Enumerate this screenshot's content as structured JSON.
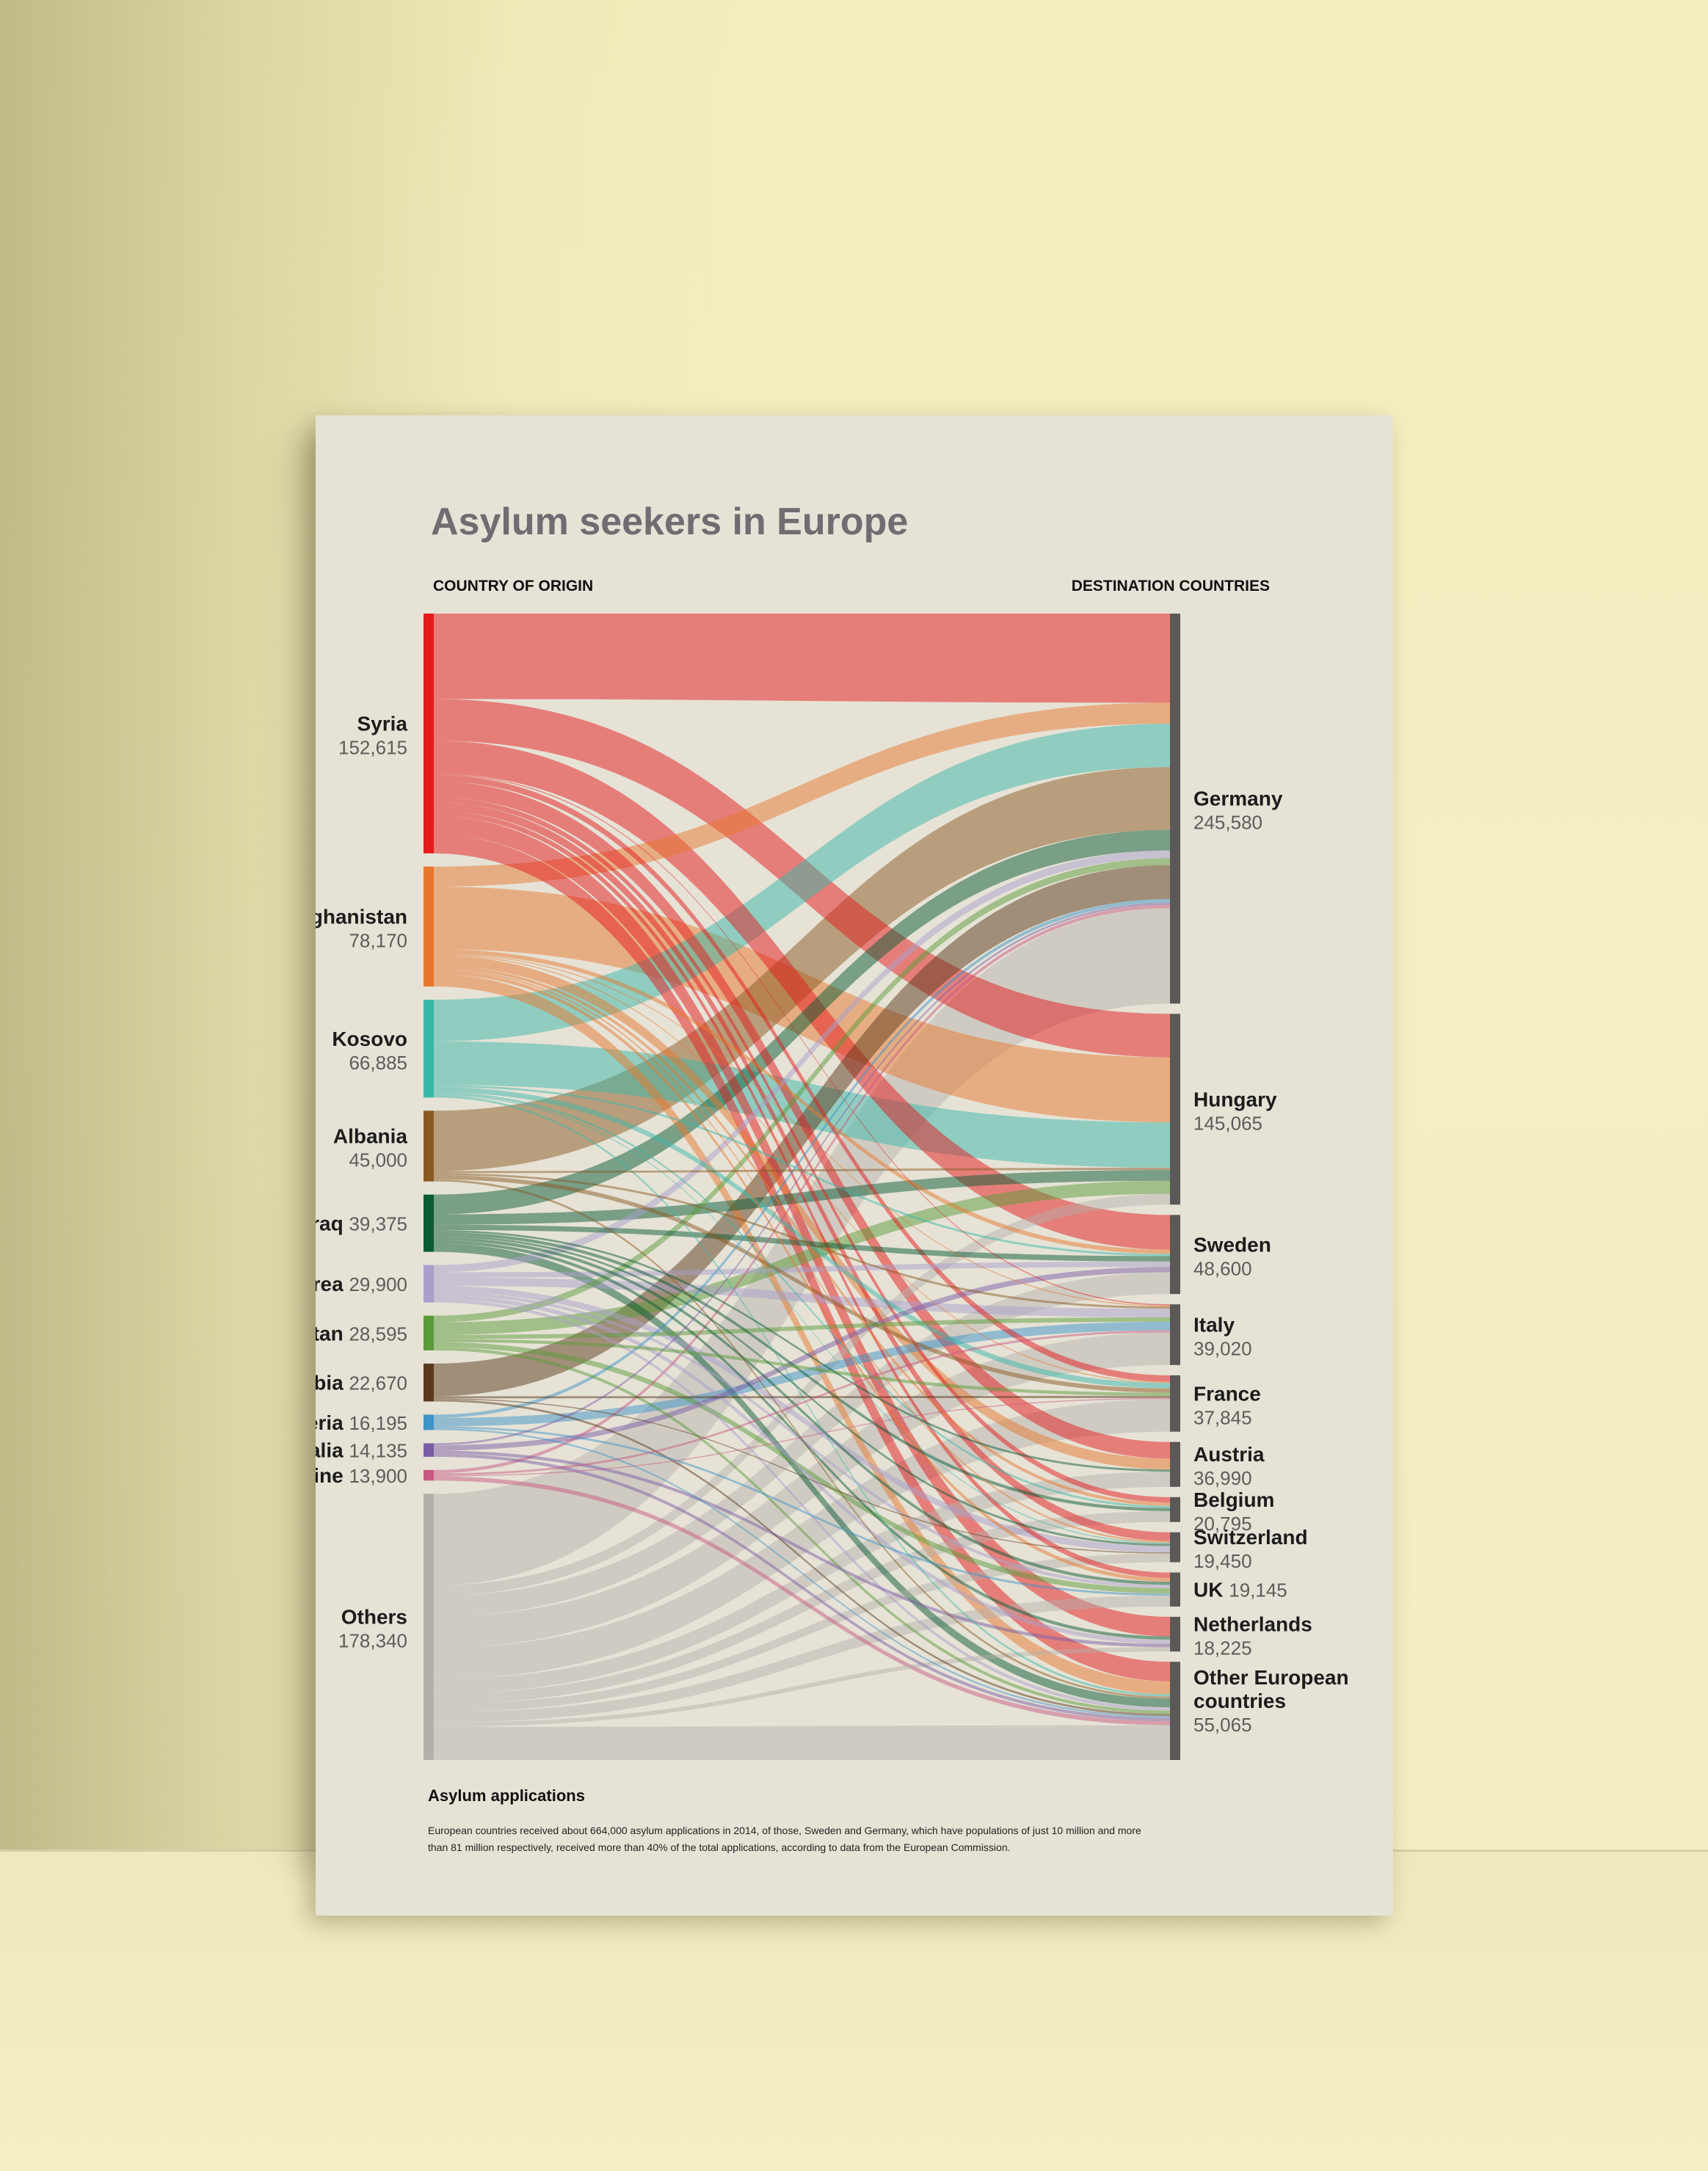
{
  "poster": {
    "title": "Asylum seekers in Europe",
    "origin_header": "COUNTRY OF ORIGIN",
    "destination_header": "DESTINATION COUNTRIES",
    "footer_title": "Asylum applications",
    "footer_text_line1": "European countries received about 664,000 asylum applications in 2014, of those, Sweden and Germany, which have populations of just 10 million and more",
    "footer_text_line2": "than 81 million respectively, received more than 40% of the total applications, according to data from the European Commission."
  },
  "chart_data": {
    "type": "sankey",
    "sources": [
      {
        "name": "Syria",
        "value": "152,615",
        "color": "#e41a1c",
        "label_layout": "stacked"
      },
      {
        "name": "Afghanistan",
        "value": "78,170",
        "color": "#e8772e",
        "label_layout": "stacked"
      },
      {
        "name": "Kosovo",
        "value": "66,885",
        "color": "#39b7a9",
        "label_layout": "stacked"
      },
      {
        "name": "Albania",
        "value": "45,000",
        "color": "#8a5a22",
        "label_layout": "stacked"
      },
      {
        "name": "Iraq",
        "value": "39,375",
        "color": "#0b5b35",
        "label_layout": "inline"
      },
      {
        "name": "Eritrea",
        "value": "29,900",
        "color": "#a99fcb",
        "label_layout": "inline"
      },
      {
        "name": "Pakistan",
        "value": "28,595",
        "color": "#5b9b3a",
        "label_layout": "inline"
      },
      {
        "name": "Serbia",
        "value": "22,670",
        "color": "#5b3a1c",
        "label_layout": "inline"
      },
      {
        "name": "Nigeria",
        "value": "16,195",
        "color": "#3e93c8",
        "label_layout": "inline"
      },
      {
        "name": "Somalia",
        "value": "14,135",
        "color": "#7b5da6",
        "label_layout": "inline"
      },
      {
        "name": "Ukraine",
        "value": "13,900",
        "color": "#c85a82",
        "label_layout": "inline"
      },
      {
        "name": "Others",
        "value": "178,340",
        "color": "#b3b0aa",
        "label_layout": "stacked"
      }
    ],
    "destinations": [
      {
        "name": "Germany",
        "value": "245,580",
        "label_layout": "stacked"
      },
      {
        "name": "Hungary",
        "value": "145,065",
        "label_layout": "stacked"
      },
      {
        "name": "Sweden",
        "value": "48,600",
        "label_layout": "stacked"
      },
      {
        "name": "Italy",
        "value": "39,020",
        "label_layout": "stacked"
      },
      {
        "name": "France",
        "value": "37,845",
        "label_layout": "stacked"
      },
      {
        "name": "Austria",
        "value": "36,990",
        "label_layout": "stacked"
      },
      {
        "name": "Belgium",
        "value": "20,795",
        "label_layout": "stacked"
      },
      {
        "name": "Switzerland",
        "value": "19,450",
        "label_layout": "stacked"
      },
      {
        "name": "UK",
        "value": "19,145",
        "label_layout": "inline"
      },
      {
        "name": "Netherlands",
        "value": "18,225",
        "label_layout": "stacked"
      },
      {
        "name": "Other European countries",
        "name_lines": [
          "Other European",
          "countries"
        ],
        "value": "55,065",
        "label_layout": "stacked"
      }
    ],
    "flows": [
      {
        "from": "Syria",
        "to": "Germany",
        "value": 41100
      },
      {
        "from": "Syria",
        "to": "Hungary",
        "value": 20000
      },
      {
        "from": "Syria",
        "to": "Sweden",
        "value": 16000
      },
      {
        "from": "Syria",
        "to": "Austria",
        "value": 7700
      },
      {
        "from": "Syria",
        "to": "Netherlands",
        "value": 9000
      },
      {
        "from": "Syria",
        "to": "Other European countries",
        "value": 9000
      },
      {
        "from": "Syria",
        "to": "France",
        "value": 3000
      },
      {
        "from": "Syria",
        "to": "Belgium",
        "value": 2500
      },
      {
        "from": "Syria",
        "to": "Switzerland",
        "value": 4000
      },
      {
        "from": "Syria",
        "to": "UK",
        "value": 2500
      },
      {
        "from": "Syria",
        "to": "Italy",
        "value": 500
      },
      {
        "from": "Afghanistan",
        "to": "Germany",
        "value": 9700
      },
      {
        "from": "Afghanistan",
        "to": "Hungary",
        "value": 30000
      },
      {
        "from": "Afghanistan",
        "to": "Sweden",
        "value": 2000
      },
      {
        "from": "Afghanistan",
        "to": "Austria",
        "value": 5000
      },
      {
        "from": "Afghanistan",
        "to": "Other European countries",
        "value": 6000
      },
      {
        "from": "Afghanistan",
        "to": "UK",
        "value": 1700
      },
      {
        "from": "Afghanistan",
        "to": "Italy",
        "value": 500
      },
      {
        "from": "Afghanistan",
        "to": "Belgium",
        "value": 1500
      },
      {
        "from": "Afghanistan",
        "to": "Switzerland",
        "value": 800
      },
      {
        "from": "Afghanistan",
        "to": "France",
        "value": 500
      },
      {
        "from": "Kosovo",
        "to": "Germany",
        "value": 20000
      },
      {
        "from": "Kosovo",
        "to": "Hungary",
        "value": 21000
      },
      {
        "from": "Kosovo",
        "to": "France",
        "value": 2500
      },
      {
        "from": "Kosovo",
        "to": "Sweden",
        "value": 1000
      },
      {
        "from": "Kosovo",
        "to": "Other European countries",
        "value": 1000
      },
      {
        "from": "Kosovo",
        "to": "Belgium",
        "value": 1000
      },
      {
        "from": "Kosovo",
        "to": "Switzerland",
        "value": 500
      },
      {
        "from": "Albania",
        "to": "Germany",
        "value": 29000
      },
      {
        "from": "Albania",
        "to": "France",
        "value": 2000
      },
      {
        "from": "Albania",
        "to": "Hungary",
        "value": 1000
      },
      {
        "from": "Albania",
        "to": "Italy",
        "value": 1000
      },
      {
        "from": "Albania",
        "to": "Other European countries",
        "value": 1000
      },
      {
        "from": "Iraq",
        "to": "Germany",
        "value": 9500
      },
      {
        "from": "Iraq",
        "to": "Hungary",
        "value": 5000
      },
      {
        "from": "Iraq",
        "to": "Sweden",
        "value": 2500
      },
      {
        "from": "Iraq",
        "to": "Netherlands",
        "value": 1500
      },
      {
        "from": "Iraq",
        "to": "Belgium",
        "value": 1500
      },
      {
        "from": "Iraq",
        "to": "Other European countries",
        "value": 4000
      },
      {
        "from": "Iraq",
        "to": "Austria",
        "value": 1000
      },
      {
        "from": "Iraq",
        "to": "UK",
        "value": 1500
      },
      {
        "from": "Iraq",
        "to": "Switzerland",
        "value": 1000
      },
      {
        "from": "Eritrea",
        "to": "Germany",
        "value": 3500
      },
      {
        "from": "Eritrea",
        "to": "Sweden",
        "value": 2500
      },
      {
        "from": "Eritrea",
        "to": "Switzerland",
        "value": 3000
      },
      {
        "from": "Eritrea",
        "to": "Italy",
        "value": 4000
      },
      {
        "from": "Eritrea",
        "to": "Netherlands",
        "value": 2000
      },
      {
        "from": "Eritrea",
        "to": "UK",
        "value": 1500
      },
      {
        "from": "Eritrea",
        "to": "Other European countries",
        "value": 1500
      },
      {
        "from": "Pakistan",
        "to": "Germany",
        "value": 3200
      },
      {
        "from": "Pakistan",
        "to": "Hungary",
        "value": 6000
      },
      {
        "from": "Pakistan",
        "to": "Italy",
        "value": 2000
      },
      {
        "from": "Pakistan",
        "to": "UK",
        "value": 2500
      },
      {
        "from": "Pakistan",
        "to": "France",
        "value": 1500
      },
      {
        "from": "Pakistan",
        "to": "Other European countries",
        "value": 1500
      },
      {
        "from": "Serbia",
        "to": "Germany",
        "value": 15700
      },
      {
        "from": "Serbia",
        "to": "France",
        "value": 1000
      },
      {
        "from": "Serbia",
        "to": "Switzerland",
        "value": 500
      },
      {
        "from": "Serbia",
        "to": "Other European countries",
        "value": 1000
      },
      {
        "from": "Nigeria",
        "to": "Italy",
        "value": 4000
      },
      {
        "from": "Nigeria",
        "to": "Germany",
        "value": 1600
      },
      {
        "from": "Nigeria",
        "to": "UK",
        "value": 1000
      },
      {
        "from": "Nigeria",
        "to": "Other European countries",
        "value": 800
      },
      {
        "from": "Somalia",
        "to": "Germany",
        "value": 1000
      },
      {
        "from": "Somalia",
        "to": "Sweden",
        "value": 2500
      },
      {
        "from": "Somalia",
        "to": "Netherlands",
        "value": 1500
      },
      {
        "from": "Somalia",
        "to": "Other European countries",
        "value": 1500
      },
      {
        "from": "Ukraine",
        "to": "Germany",
        "value": 1600
      },
      {
        "from": "Ukraine",
        "to": "Italy",
        "value": 1000
      },
      {
        "from": "Ukraine",
        "to": "France",
        "value": 500
      },
      {
        "from": "Ukraine",
        "to": "Other European countries",
        "value": 2000
      },
      {
        "from": "Others",
        "to": "Germany",
        "value": 44000
      },
      {
        "from": "Others",
        "to": "Hungary",
        "value": 5000
      },
      {
        "from": "Others",
        "to": "Sweden",
        "value": 10000
      },
      {
        "from": "Others",
        "to": "Italy",
        "value": 15000
      },
      {
        "from": "Others",
        "to": "France",
        "value": 15000
      },
      {
        "from": "Others",
        "to": "Austria",
        "value": 7000
      },
      {
        "from": "Others",
        "to": "Belgium",
        "value": 5000
      },
      {
        "from": "Others",
        "to": "Switzerland",
        "value": 4000
      },
      {
        "from": "Others",
        "to": "UK",
        "value": 5000
      },
      {
        "from": "Others",
        "to": "Netherlands",
        "value": 2000
      },
      {
        "from": "Others",
        "to": "Other European countries",
        "value": 16000
      }
    ]
  }
}
